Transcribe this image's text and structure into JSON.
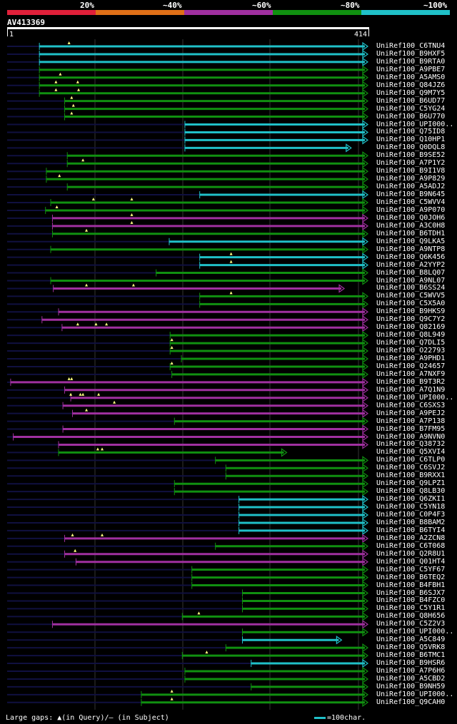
{
  "legend": {
    "labels": [
      "20%",
      "~40%",
      "~60%",
      "~80%",
      "~100%"
    ],
    "colors": [
      "#e0203a",
      "#e07018",
      "#a030a0",
      "#109010",
      "#20c0c8"
    ]
  },
  "query": {
    "id": "AV413369",
    "start_label": "1",
    "end_label": "414",
    "length": 414
  },
  "colors": {
    "cyan": "#20c0c8",
    "green": "#109010",
    "purple": "#a030a0",
    "dark": "#101040"
  },
  "footer": {
    "gaps_text": "Large gaps: ▲(in Query)/– (in Subject)",
    "scale_text": "=100char."
  },
  "chart_data": {
    "type": "alignment",
    "query_length": 414,
    "hits": [
      {
        "name": "UniRef100_C6TNU4",
        "color": "cyan",
        "start": 38,
        "end": 414,
        "tri": [
          72
        ]
      },
      {
        "name": "UniRef100_B9HXF5",
        "color": "cyan",
        "start": 38,
        "end": 414,
        "tri": []
      },
      {
        "name": "UniRef100_B9RTA0",
        "color": "cyan",
        "start": 38,
        "end": 414,
        "tri": []
      },
      {
        "name": "UniRef100_A9PBE7",
        "color": "green",
        "start": 38,
        "end": 414,
        "tri": []
      },
      {
        "name": "UniRef100_A5AMS0",
        "color": "green",
        "start": 38,
        "end": 414,
        "tri": [
          62
        ]
      },
      {
        "name": "UniRef100_Q84JZ6",
        "color": "green",
        "start": 38,
        "end": 414,
        "tri": [
          57,
          82
        ]
      },
      {
        "name": "UniRef100_Q9M7Y5",
        "color": "green",
        "start": 38,
        "end": 414,
        "tri": [
          57,
          83
        ]
      },
      {
        "name": "UniRef100_B6UD77",
        "color": "green",
        "start": 67,
        "end": 414,
        "tri": [
          75
        ]
      },
      {
        "name": "UniRef100_C5YG24",
        "color": "green",
        "start": 67,
        "end": 414,
        "tri": [
          77
        ]
      },
      {
        "name": "UniRef100_B6U770",
        "color": "green",
        "start": 67,
        "end": 414,
        "tri": [
          75
        ]
      },
      {
        "name": "UniRef100_UPI000..",
        "color": "cyan",
        "start": 205,
        "end": 414,
        "tri": []
      },
      {
        "name": "UniRef100_Q75ID8",
        "color": "cyan",
        "start": 205,
        "end": 414,
        "tri": []
      },
      {
        "name": "UniRef100_Q10HP1",
        "color": "cyan",
        "start": 205,
        "end": 414,
        "tri": []
      },
      {
        "name": "UniRef100_Q0DQL8",
        "color": "cyan",
        "start": 205,
        "end": 395,
        "tri": []
      },
      {
        "name": "UniRef100_B9SE52",
        "color": "green",
        "start": 70,
        "end": 414,
        "tri": []
      },
      {
        "name": "UniRef100_A7P1Y2",
        "color": "green",
        "start": 70,
        "end": 414,
        "tri": [
          88
        ]
      },
      {
        "name": "UniRef100_B9I1V8",
        "color": "green",
        "start": 46,
        "end": 414,
        "tri": []
      },
      {
        "name": "UniRef100_A9P829",
        "color": "green",
        "start": 46,
        "end": 414,
        "tri": [
          61
        ]
      },
      {
        "name": "UniRef100_A5ADJ2",
        "color": "green",
        "start": 70,
        "end": 414,
        "tri": []
      },
      {
        "name": "UniRef100_B9N645",
        "color": "cyan",
        "start": 222,
        "end": 414,
        "tri": []
      },
      {
        "name": "UniRef100_C5WVV4",
        "color": "green",
        "start": 51,
        "end": 414,
        "tri": [
          100,
          144
        ]
      },
      {
        "name": "UniRef100_A9P070",
        "color": "green",
        "start": 45,
        "end": 414,
        "tri": [
          58
        ]
      },
      {
        "name": "UniRef100_Q0JOH6",
        "color": "purple",
        "start": 53,
        "end": 414,
        "tri": [
          144
        ]
      },
      {
        "name": "UniRef100_A3C0H8",
        "color": "purple",
        "start": 53,
        "end": 414,
        "tri": [
          144
        ]
      },
      {
        "name": "UniRef100_B6TDH1",
        "color": "green",
        "start": 53,
        "end": 414,
        "tri": [
          92
        ]
      },
      {
        "name": "UniRef100_Q9LKA5",
        "color": "cyan",
        "start": 187,
        "end": 414,
        "tri": []
      },
      {
        "name": "UniRef100_A9NTP8",
        "color": "green",
        "start": 51,
        "end": 414,
        "tri": []
      },
      {
        "name": "UniRef100_Q6K456",
        "color": "cyan",
        "start": 222,
        "end": 414,
        "tri": [
          258
        ]
      },
      {
        "name": "UniRef100_A2YYP2",
        "color": "cyan",
        "start": 222,
        "end": 414,
        "tri": [
          258
        ]
      },
      {
        "name": "UniRef100_B8LQ07",
        "color": "green",
        "start": 172,
        "end": 414,
        "tri": []
      },
      {
        "name": "UniRef100_A9NL07",
        "color": "green",
        "start": 51,
        "end": 414,
        "tri": []
      },
      {
        "name": "UniRef100_B6SS24",
        "color": "purple",
        "start": 54,
        "end": 387,
        "tri": [
          92,
          146
        ]
      },
      {
        "name": "UniRef100_C5WVV5",
        "color": "green",
        "start": 222,
        "end": 414,
        "tri": [
          258
        ]
      },
      {
        "name": "UniRef100_C5X5A0",
        "color": "green",
        "start": 222,
        "end": 414,
        "tri": []
      },
      {
        "name": "UniRef100_B9HKS9",
        "color": "purple",
        "start": 60,
        "end": 414,
        "tri": []
      },
      {
        "name": "UniRef100_Q9C7Y2",
        "color": "purple",
        "start": 41,
        "end": 414,
        "tri": []
      },
      {
        "name": "UniRef100_Q82169",
        "color": "purple",
        "start": 64,
        "end": 414,
        "tri": [
          82,
          103,
          115
        ]
      },
      {
        "name": "UniRef100_Q8L949",
        "color": "green",
        "start": 188,
        "end": 414,
        "tri": []
      },
      {
        "name": "UniRef100_Q7DLI5",
        "color": "green",
        "start": 188,
        "end": 414,
        "tri": [
          190
        ]
      },
      {
        "name": "UniRef100_O22793",
        "color": "green",
        "start": 188,
        "end": 414,
        "tri": [
          190
        ]
      },
      {
        "name": "UniRef100_A9PHD1",
        "color": "green",
        "start": 201,
        "end": 414,
        "tri": []
      },
      {
        "name": "UniRef100_Q24657",
        "color": "green",
        "start": 188,
        "end": 414,
        "tri": [
          190
        ]
      },
      {
        "name": "UniRef100_A7NXF9",
        "color": "green",
        "start": 190,
        "end": 414,
        "tri": []
      },
      {
        "name": "UniRef100_B9T3R2",
        "color": "purple",
        "start": 5,
        "end": 414,
        "tri": [
          72,
          75
        ]
      },
      {
        "name": "UniRef100_A7Q1N9",
        "color": "purple",
        "start": 67,
        "end": 414,
        "tri": []
      },
      {
        "name": "UniRef100_UPI000..",
        "color": "purple",
        "start": 74,
        "end": 414,
        "tri": [
          74,
          85,
          88,
          106
        ]
      },
      {
        "name": "UniRef100_C6SXS3",
        "color": "purple",
        "start": 65,
        "end": 414,
        "tri": [
          124
        ]
      },
      {
        "name": "UniRef100_A9PEJ2",
        "color": "purple",
        "start": 76,
        "end": 414,
        "tri": [
          92
        ]
      },
      {
        "name": "UniRef100_A7P138",
        "color": "green",
        "start": 193,
        "end": 414,
        "tri": []
      },
      {
        "name": "UniRef100_B7FM95",
        "color": "purple",
        "start": 65,
        "end": 414,
        "tri": []
      },
      {
        "name": "UniRef100_A9NVN0",
        "color": "purple",
        "start": 8,
        "end": 414,
        "tri": []
      },
      {
        "name": "UniRef100_Q38732",
        "color": "purple",
        "start": 60,
        "end": 414,
        "tri": []
      },
      {
        "name": "UniRef100_Q5XVI4",
        "color": "green",
        "start": 60,
        "end": 321,
        "tri": [
          105,
          110
        ]
      },
      {
        "name": "UniRef100_C6TLP0",
        "color": "green",
        "start": 240,
        "end": 414,
        "tri": []
      },
      {
        "name": "UniRef100_C6SVJ2",
        "color": "green",
        "start": 252,
        "end": 414,
        "tri": []
      },
      {
        "name": "UniRef100_B9RXX1",
        "color": "green",
        "start": 252,
        "end": 414,
        "tri": []
      },
      {
        "name": "UniRef100_Q9LPZ1",
        "color": "green",
        "start": 193,
        "end": 414,
        "tri": []
      },
      {
        "name": "UniRef100_Q8LB30",
        "color": "green",
        "start": 193,
        "end": 414,
        "tri": []
      },
      {
        "name": "UniRef100_Q6ZKI1",
        "color": "cyan",
        "start": 267,
        "end": 414,
        "tri": []
      },
      {
        "name": "UniRef100_C5YN18",
        "color": "cyan",
        "start": 267,
        "end": 414,
        "tri": []
      },
      {
        "name": "UniRef100_C0P4F3",
        "color": "cyan",
        "start": 267,
        "end": 414,
        "tri": []
      },
      {
        "name": "UniRef100_B8BAM2",
        "color": "cyan",
        "start": 267,
        "end": 414,
        "tri": []
      },
      {
        "name": "UniRef100_B6TYI4",
        "color": "cyan",
        "start": 267,
        "end": 414,
        "tri": []
      },
      {
        "name": "UniRef100_A2ZCN8",
        "color": "purple",
        "start": 67,
        "end": 414,
        "tri": [
          76,
          110
        ]
      },
      {
        "name": "UniRef100_C6T068",
        "color": "green",
        "start": 240,
        "end": 414,
        "tri": []
      },
      {
        "name": "UniRef100_Q2R8U1",
        "color": "purple",
        "start": 67,
        "end": 414,
        "tri": [
          79
        ]
      },
      {
        "name": "UniRef100_Q01HT4",
        "color": "purple",
        "start": 80,
        "end": 414,
        "tri": []
      },
      {
        "name": "UniRef100_C5YF67",
        "color": "green",
        "start": 213,
        "end": 414,
        "tri": []
      },
      {
        "name": "UniRef100_B6TEQ2",
        "color": "green",
        "start": 213,
        "end": 414,
        "tri": []
      },
      {
        "name": "UniRef100_B4FBH1",
        "color": "green",
        "start": 213,
        "end": 414,
        "tri": []
      },
      {
        "name": "UniRef100_B6SJX7",
        "color": "green",
        "start": 271,
        "end": 414,
        "tri": []
      },
      {
        "name": "UniRef100_B4FZC0",
        "color": "green",
        "start": 271,
        "end": 414,
        "tri": []
      },
      {
        "name": "UniRef100_C5Y1R1",
        "color": "green",
        "start": 271,
        "end": 414,
        "tri": []
      },
      {
        "name": "UniRef100_Q8H656",
        "color": "green",
        "start": 202,
        "end": 414,
        "tri": [
          221
        ]
      },
      {
        "name": "UniRef100_C5Z2V3",
        "color": "purple",
        "start": 53,
        "end": 414,
        "tri": []
      },
      {
        "name": "UniRef100_UPI000..",
        "color": "green",
        "start": 271,
        "end": 414,
        "tri": []
      },
      {
        "name": "UniRef100_A5C849",
        "color": "cyan",
        "start": 271,
        "end": 384,
        "tri": []
      },
      {
        "name": "UniRef100_Q5VRK8",
        "color": "green",
        "start": 252,
        "end": 414,
        "tri": []
      },
      {
        "name": "UniRef100_B6TMC1",
        "color": "green",
        "start": 202,
        "end": 414,
        "tri": [
          230
        ]
      },
      {
        "name": "UniRef100_B9HSR6",
        "color": "cyan",
        "start": 281,
        "end": 414,
        "tri": []
      },
      {
        "name": "UniRef100_A7P6H6",
        "color": "green",
        "start": 205,
        "end": 414,
        "tri": []
      },
      {
        "name": "UniRef100_A5CBD2",
        "color": "green",
        "start": 205,
        "end": 414,
        "tri": []
      },
      {
        "name": "UniRef100_B9NH59",
        "color": "green",
        "start": 281,
        "end": 414,
        "tri": []
      },
      {
        "name": "UniRef100_UPI000..",
        "color": "green",
        "start": 155,
        "end": 414,
        "tri": [
          190
        ]
      },
      {
        "name": "UniRef100_Q9CAH0",
        "color": "green",
        "start": 155,
        "end": 414,
        "tri": [
          190
        ]
      }
    ]
  }
}
